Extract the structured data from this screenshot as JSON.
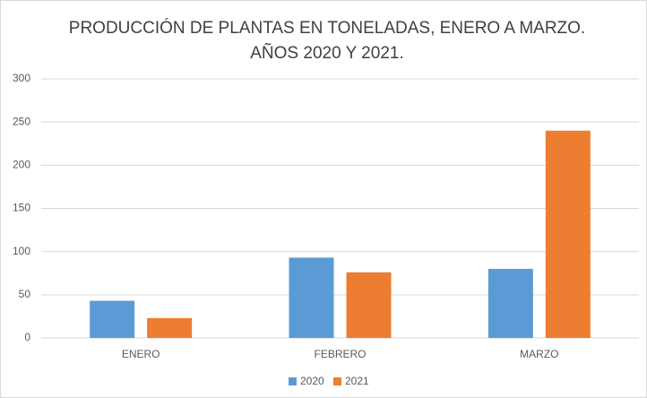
{
  "chart_data": {
    "type": "bar",
    "title": [
      "PRODUCCIÓN DE PLANTAS EN TONELADAS, ENERO A MARZO.",
      "AÑOS 2020 Y 2021."
    ],
    "categories": [
      "ENERO",
      "FEBRERO",
      "MARZO"
    ],
    "series": [
      {
        "name": "2020",
        "color": "#5b9bd5",
        "values": [
          43,
          93,
          80
        ]
      },
      {
        "name": "2021",
        "color": "#ed7d31",
        "values": [
          23,
          76,
          240
        ]
      }
    ],
    "ylim": [
      0,
      300
    ],
    "yticks": [
      0,
      50,
      100,
      150,
      200,
      250,
      300
    ],
    "grid": true,
    "legend": "bottom"
  }
}
